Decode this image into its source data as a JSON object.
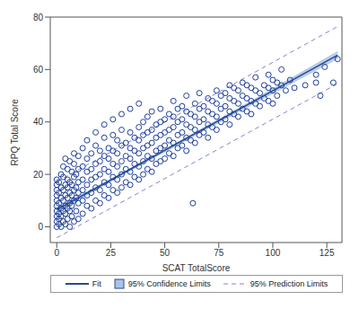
{
  "chart_data": {
    "type": "scatter",
    "x_label": "SCAT TotalScore",
    "y_label": "RPQ Total Score",
    "xlim": [
      -3,
      132
    ],
    "xticks": [
      0,
      25,
      50,
      75,
      100,
      125
    ],
    "ylim": [
      -6,
      80
    ],
    "yticks": [
      0,
      20,
      40,
      60,
      80
    ],
    "grid": false,
    "legend": "bottom",
    "points": {
      "color": "#1f3f99",
      "marker": "open_circle",
      "values": [
        [
          0,
          0
        ],
        [
          0,
          2
        ],
        [
          0,
          4
        ],
        [
          0,
          6
        ],
        [
          0,
          8
        ],
        [
          0,
          10
        ],
        [
          0,
          12
        ],
        [
          0,
          14
        ],
        [
          0,
          16
        ],
        [
          0,
          18
        ],
        [
          1,
          1
        ],
        [
          1,
          3
        ],
        [
          1,
          5
        ],
        [
          1,
          9
        ],
        [
          1,
          13
        ],
        [
          1,
          17
        ],
        [
          2,
          0
        ],
        [
          2,
          4
        ],
        [
          2,
          7
        ],
        [
          2,
          11
        ],
        [
          2,
          15
        ],
        [
          2,
          20
        ],
        [
          3,
          2
        ],
        [
          3,
          6
        ],
        [
          3,
          10
        ],
        [
          3,
          14
        ],
        [
          3,
          19
        ],
        [
          3,
          23
        ],
        [
          4,
          1
        ],
        [
          4,
          5
        ],
        [
          4,
          8
        ],
        [
          4,
          12
        ],
        [
          4,
          16
        ],
        [
          4,
          26
        ],
        [
          5,
          3
        ],
        [
          5,
          7
        ],
        [
          5,
          11
        ],
        [
          5,
          15
        ],
        [
          5,
          18
        ],
        [
          5,
          22
        ],
        [
          6,
          0
        ],
        [
          6,
          6
        ],
        [
          6,
          9
        ],
        [
          6,
          13
        ],
        [
          6,
          17
        ],
        [
          6,
          25
        ],
        [
          7,
          4
        ],
        [
          7,
          8
        ],
        [
          7,
          12
        ],
        [
          7,
          16
        ],
        [
          7,
          21
        ],
        [
          8,
          2
        ],
        [
          8,
          10
        ],
        [
          8,
          14
        ],
        [
          8,
          19
        ],
        [
          8,
          24
        ],
        [
          8,
          28
        ],
        [
          9,
          6
        ],
        [
          9,
          11
        ],
        [
          9,
          15
        ],
        [
          9,
          20
        ],
        [
          10,
          3
        ],
        [
          10,
          9
        ],
        [
          10,
          13
        ],
        [
          10,
          17
        ],
        [
          10,
          22
        ],
        [
          10,
          27
        ],
        [
          12,
          5
        ],
        [
          12,
          10
        ],
        [
          12,
          14
        ],
        [
          12,
          18
        ],
        [
          12,
          23
        ],
        [
          12,
          30
        ],
        [
          14,
          8
        ],
        [
          14,
          12
        ],
        [
          14,
          16
        ],
        [
          14,
          21
        ],
        [
          14,
          26
        ],
        [
          14,
          33
        ],
        [
          16,
          7
        ],
        [
          16,
          13
        ],
        [
          16,
          18
        ],
        [
          16,
          22
        ],
        [
          16,
          28
        ],
        [
          18,
          10
        ],
        [
          18,
          15
        ],
        [
          18,
          19
        ],
        [
          18,
          24
        ],
        [
          18,
          31
        ],
        [
          18,
          36
        ],
        [
          20,
          9
        ],
        [
          20,
          14
        ],
        [
          20,
          20
        ],
        [
          20,
          25
        ],
        [
          20,
          29
        ],
        [
          22,
          12
        ],
        [
          22,
          17
        ],
        [
          22,
          22
        ],
        [
          22,
          27
        ],
        [
          22,
          34
        ],
        [
          22,
          39
        ],
        [
          24,
          11
        ],
        [
          24,
          16
        ],
        [
          24,
          21
        ],
        [
          24,
          26
        ],
        [
          24,
          30
        ],
        [
          26,
          14
        ],
        [
          26,
          19
        ],
        [
          26,
          24
        ],
        [
          26,
          29
        ],
        [
          26,
          35
        ],
        [
          26,
          41
        ],
        [
          28,
          13
        ],
        [
          28,
          18
        ],
        [
          28,
          23
        ],
        [
          28,
          28
        ],
        [
          28,
          33
        ],
        [
          30,
          15
        ],
        [
          30,
          20
        ],
        [
          30,
          25
        ],
        [
          30,
          31
        ],
        [
          30,
          37
        ],
        [
          30,
          43
        ],
        [
          32,
          17
        ],
        [
          32,
          22
        ],
        [
          32,
          27
        ],
        [
          32,
          32
        ],
        [
          34,
          16
        ],
        [
          34,
          21
        ],
        [
          34,
          26
        ],
        [
          34,
          30
        ],
        [
          34,
          36
        ],
        [
          34,
          45
        ],
        [
          36,
          19
        ],
        [
          36,
          24
        ],
        [
          36,
          29
        ],
        [
          36,
          34
        ],
        [
          38,
          18
        ],
        [
          38,
          23
        ],
        [
          38,
          28
        ],
        [
          38,
          33
        ],
        [
          38,
          38
        ],
        [
          38,
          47
        ],
        [
          40,
          20
        ],
        [
          40,
          25
        ],
        [
          40,
          30
        ],
        [
          40,
          35
        ],
        [
          40,
          40
        ],
        [
          42,
          22
        ],
        [
          42,
          27
        ],
        [
          42,
          31
        ],
        [
          42,
          36
        ],
        [
          42,
          42
        ],
        [
          44,
          21
        ],
        [
          44,
          26
        ],
        [
          44,
          32
        ],
        [
          44,
          37
        ],
        [
          44,
          44
        ],
        [
          46,
          24
        ],
        [
          46,
          29
        ],
        [
          46,
          34
        ],
        [
          46,
          39
        ],
        [
          48,
          25
        ],
        [
          48,
          30
        ],
        [
          48,
          35
        ],
        [
          48,
          40
        ],
        [
          48,
          45
        ],
        [
          50,
          26
        ],
        [
          50,
          31
        ],
        [
          50,
          36
        ],
        [
          50,
          41
        ],
        [
          52,
          28
        ],
        [
          52,
          33
        ],
        [
          52,
          37
        ],
        [
          52,
          43
        ],
        [
          54,
          27
        ],
        [
          54,
          32
        ],
        [
          54,
          38
        ],
        [
          54,
          42
        ],
        [
          54,
          48
        ],
        [
          56,
          30
        ],
        [
          56,
          35
        ],
        [
          56,
          40
        ],
        [
          56,
          45
        ],
        [
          58,
          31
        ],
        [
          58,
          36
        ],
        [
          58,
          41
        ],
        [
          58,
          46
        ],
        [
          60,
          29
        ],
        [
          60,
          34
        ],
        [
          60,
          39
        ],
        [
          60,
          44
        ],
        [
          60,
          50
        ],
        [
          62,
          33
        ],
        [
          62,
          38
        ],
        [
          62,
          43
        ],
        [
          63,
          9
        ],
        [
          64,
          32
        ],
        [
          64,
          37
        ],
        [
          64,
          42
        ],
        [
          64,
          47
        ],
        [
          66,
          35
        ],
        [
          66,
          40
        ],
        [
          66,
          45
        ],
        [
          66,
          51
        ],
        [
          68,
          36
        ],
        [
          68,
          41
        ],
        [
          68,
          46
        ],
        [
          70,
          34
        ],
        [
          70,
          39
        ],
        [
          70,
          44
        ],
        [
          70,
          49
        ],
        [
          72,
          38
        ],
        [
          72,
          43
        ],
        [
          72,
          48
        ],
        [
          74,
          37
        ],
        [
          74,
          42
        ],
        [
          74,
          47
        ],
        [
          74,
          52
        ],
        [
          76,
          40
        ],
        [
          76,
          45
        ],
        [
          76,
          50
        ],
        [
          78,
          41
        ],
        [
          78,
          46
        ],
        [
          78,
          51
        ],
        [
          80,
          39
        ],
        [
          80,
          44
        ],
        [
          80,
          49
        ],
        [
          80,
          54
        ],
        [
          82,
          43
        ],
        [
          82,
          48
        ],
        [
          82,
          53
        ],
        [
          84,
          42
        ],
        [
          84,
          47
        ],
        [
          84,
          52
        ],
        [
          86,
          45
        ],
        [
          86,
          50
        ],
        [
          86,
          55
        ],
        [
          88,
          44
        ],
        [
          88,
          49
        ],
        [
          88,
          54
        ],
        [
          90,
          43
        ],
        [
          90,
          48
        ],
        [
          90,
          53
        ],
        [
          92,
          47
        ],
        [
          92,
          52
        ],
        [
          92,
          57
        ],
        [
          94,
          46
        ],
        [
          94,
          51
        ],
        [
          96,
          49
        ],
        [
          96,
          54
        ],
        [
          98,
          48
        ],
        [
          98,
          53
        ],
        [
          98,
          58
        ],
        [
          100,
          47
        ],
        [
          100,
          52
        ],
        [
          100,
          56
        ],
        [
          102,
          50
        ],
        [
          102,
          55
        ],
        [
          104,
          54
        ],
        [
          104,
          60
        ],
        [
          106,
          52
        ],
        [
          108,
          56
        ],
        [
          110,
          53
        ],
        [
          115,
          54
        ],
        [
          120,
          58
        ],
        [
          120,
          55
        ],
        [
          122,
          50
        ],
        [
          124,
          61
        ],
        [
          128,
          55
        ],
        [
          130,
          64
        ]
      ]
    },
    "series": [
      {
        "name": "Fit",
        "type": "line",
        "line_style": "solid",
        "color": "#2c4a8c",
        "x": [
          0,
          130
        ],
        "values": [
          6.5,
          65.5
        ]
      },
      {
        "name": "95% Confidence Limits",
        "type": "area",
        "color": "#a9c3e8",
        "x": [
          0,
          30,
          60,
          90,
          130
        ],
        "lower": [
          5.7,
          19.6,
          33.1,
          46.5,
          64.2
        ],
        "upper": [
          7.3,
          20.4,
          34.1,
          47.9,
          66.8
        ]
      },
      {
        "name": "95% Prediction Limits",
        "type": "line",
        "line_style": "dashed",
        "color": "#8c7fd0",
        "x": [
          0,
          130
        ],
        "lower": [
          -4.2,
          54.6
        ],
        "upper": [
          17.2,
          76.4
        ]
      }
    ]
  }
}
